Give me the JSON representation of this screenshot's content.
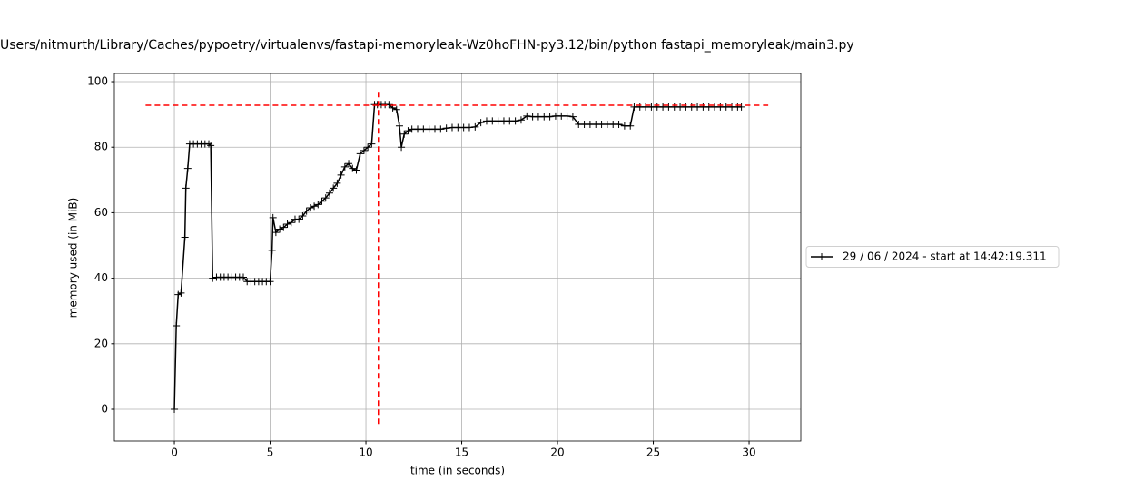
{
  "chart_data": {
    "type": "line",
    "title": "Users/nitmurth/Library/Caches/pypoetry/virtualenvs/fastapi-memoryleak-Wz0hoFHN-py3.12/bin/python fastapi_memoryleak/main3.py",
    "x_label": "time (in seconds)",
    "y_label": "memory used (in MiB)",
    "x": [
      0,
      0.1,
      0.2,
      0.35,
      0.55,
      0.6,
      0.7,
      0.8,
      1.0,
      1.2,
      1.4,
      1.6,
      1.8,
      1.9,
      2.0,
      2.2,
      2.4,
      2.6,
      2.8,
      3.0,
      3.2,
      3.4,
      3.6,
      3.8,
      4.0,
      4.2,
      4.4,
      4.6,
      4.8,
      5.0,
      5.1,
      5.15,
      5.3,
      5.5,
      5.7,
      5.9,
      6.1,
      6.3,
      6.5,
      6.7,
      6.9,
      7.1,
      7.3,
      7.5,
      7.7,
      7.9,
      8.1,
      8.3,
      8.5,
      8.7,
      8.9,
      9.1,
      9.3,
      9.5,
      9.7,
      9.9,
      10.1,
      10.3,
      10.45,
      10.6,
      10.8,
      11.0,
      11.2,
      11.4,
      11.6,
      11.75,
      11.85,
      12.0,
      12.2,
      12.4,
      12.7,
      13.0,
      13.3,
      13.6,
      13.9,
      14.2,
      14.5,
      14.8,
      15.1,
      15.4,
      15.7,
      16.0,
      16.3,
      16.6,
      16.9,
      17.2,
      17.5,
      17.8,
      18.1,
      18.4,
      18.7,
      19.0,
      19.3,
      19.6,
      19.9,
      20.2,
      20.5,
      20.8,
      21.1,
      21.4,
      21.7,
      22.0,
      22.3,
      22.6,
      22.9,
      23.2,
      23.5,
      23.8,
      24.0,
      24.3,
      24.6,
      24.9,
      25.2,
      25.5,
      25.8,
      26.1,
      26.4,
      26.7,
      27.0,
      27.3,
      27.6,
      27.9,
      28.2,
      28.5,
      28.8,
      29.1,
      29.4,
      29.6
    ],
    "series": [
      {
        "name": "29 / 06 / 2024 - start at 14:42:19.311",
        "color": "#000000",
        "values": [
          0,
          25.5,
          35,
          35.5,
          52.5,
          67.5,
          73.5,
          81,
          81,
          81,
          81,
          81,
          81,
          80.5,
          40,
          40.3,
          40.3,
          40.3,
          40.3,
          40.3,
          40.3,
          40.3,
          40.3,
          39,
          39,
          39,
          39,
          39,
          39,
          39,
          48.5,
          58.5,
          54,
          55,
          55.5,
          56.5,
          57,
          58,
          58,
          59,
          60.5,
          61.5,
          62,
          62.5,
          63.5,
          64.5,
          66,
          67.5,
          69,
          71.5,
          74,
          75,
          73.5,
          73,
          78,
          79,
          80,
          81,
          93,
          93,
          93,
          93,
          93,
          92,
          91.5,
          86.5,
          80,
          84,
          85,
          85.5,
          85.5,
          85.5,
          85.5,
          85.5,
          85.5,
          85.8,
          86,
          86,
          86,
          86,
          86.2,
          87.5,
          88,
          88,
          88,
          88,
          88,
          88,
          88.3,
          89.5,
          89.3,
          89.3,
          89.3,
          89.3,
          89.5,
          89.5,
          89.5,
          89.3,
          87,
          87,
          87,
          87,
          87,
          87,
          87,
          87,
          86.5,
          86.5,
          92.3,
          92.3,
          92.3,
          92.3,
          92.3,
          92.3,
          92.3,
          92.3,
          92.3,
          92.3,
          92.3,
          92.3,
          92.3,
          92.3,
          92.3,
          92.3,
          92.3,
          92.3,
          92.3,
          92.3
        ]
      }
    ],
    "max_marker": {
      "x": 10.65,
      "y": 92.8,
      "color": "#ff0000",
      "x_span": [
        -1.5,
        31
      ],
      "y_span": [
        -4.5,
        97.5
      ]
    },
    "xlim": [
      -3.13,
      32.7
    ],
    "ylim": [
      -9.7,
      102.5
    ],
    "xticks": [
      0,
      5,
      10,
      15,
      20,
      25,
      30
    ],
    "yticks": [
      0,
      20,
      40,
      60,
      80,
      100
    ],
    "grid": true,
    "legend": "right"
  }
}
